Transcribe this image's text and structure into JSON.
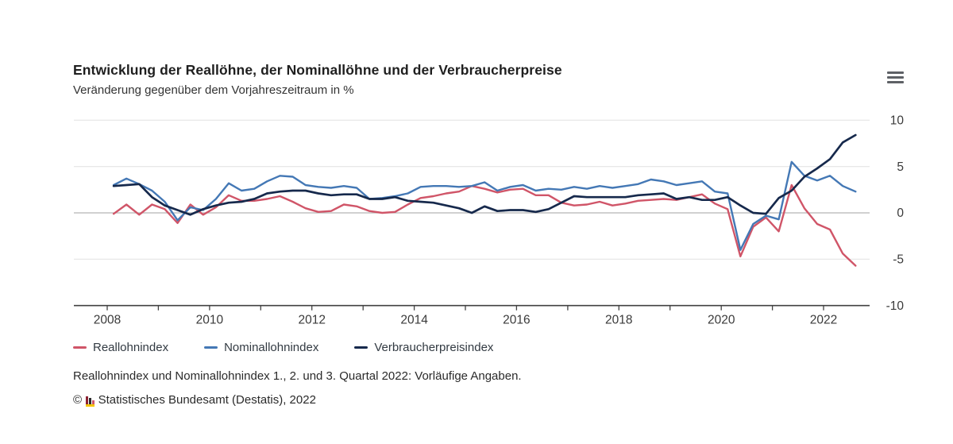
{
  "header": {
    "title": "Entwicklung der Reallöhne, der Nominallöhne und der Verbraucherpreise",
    "subtitle": "Veränderung gegenüber dem Vorjahreszeitraum in %"
  },
  "menu": {
    "icon": "hamburger-icon"
  },
  "chart_data": {
    "type": "line",
    "frequency": "quarterly",
    "x_start": "2008-Q1",
    "x_end": "2022-Q3",
    "x_ticks": [
      2008,
      2009,
      2010,
      2011,
      2012,
      2013,
      2014,
      2015,
      2016,
      2017,
      2018,
      2019,
      2020,
      2021,
      2022
    ],
    "x_tick_labels": [
      "2008",
      "2010",
      "2012",
      "2014",
      "2016",
      "2018",
      "2020",
      "2022"
    ],
    "y_ticks": [
      10,
      5,
      0,
      -5,
      -10
    ],
    "ylim": [
      -10,
      10
    ],
    "grid": "horizontal",
    "legend_position": "bottom",
    "colors": {
      "grid": "#e4e4e4",
      "zero_line": "#b5b5b5",
      "axis": "#424242",
      "tick_text": "#3a3a3a"
    },
    "series": [
      {
        "name": "Reallohnindex",
        "color": "#d05568",
        "values": [
          -0.1,
          0.9,
          -0.2,
          0.9,
          0.4,
          -1.1,
          0.9,
          -0.2,
          0.6,
          1.9,
          1.3,
          1.3,
          1.5,
          1.8,
          1.2,
          0.5,
          0.1,
          0.2,
          0.9,
          0.7,
          0.2,
          0.0,
          0.1,
          0.9,
          1.6,
          1.8,
          2.1,
          2.3,
          2.9,
          2.6,
          2.2,
          2.5,
          2.6,
          1.9,
          1.9,
          1.1,
          0.8,
          0.9,
          1.2,
          0.8,
          1.0,
          1.3,
          1.4,
          1.5,
          1.4,
          1.7,
          2.0,
          1.0,
          0.4,
          -4.7,
          -1.5,
          -0.5,
          -2.0,
          3.0,
          0.5,
          -1.2,
          -1.8,
          -4.4,
          -5.7
        ]
      },
      {
        "name": "Nominallohnindex",
        "color": "#4478b5",
        "values": [
          3.0,
          3.7,
          3.1,
          2.4,
          1.2,
          -0.8,
          0.6,
          0.3,
          1.5,
          3.2,
          2.4,
          2.6,
          3.4,
          4.0,
          3.9,
          3.0,
          2.8,
          2.7,
          2.9,
          2.7,
          1.5,
          1.6,
          1.8,
          2.1,
          2.8,
          2.9,
          2.9,
          2.8,
          2.9,
          3.3,
          2.4,
          2.8,
          3.0,
          2.4,
          2.6,
          2.5,
          2.8,
          2.6,
          2.9,
          2.7,
          2.9,
          3.1,
          3.6,
          3.4,
          3.0,
          3.2,
          3.4,
          2.3,
          2.1,
          -4.0,
          -1.2,
          -0.3,
          -0.7,
          5.5,
          4.0,
          3.5,
          4.0,
          2.9,
          2.3
        ]
      },
      {
        "name": "Verbraucherpreisindex",
        "color": "#16294c",
        "values": [
          2.9,
          3.0,
          3.1,
          1.7,
          0.8,
          0.3,
          -0.2,
          0.4,
          0.8,
          1.1,
          1.2,
          1.5,
          2.1,
          2.3,
          2.4,
          2.4,
          2.1,
          1.9,
          2.0,
          2.0,
          1.5,
          1.5,
          1.7,
          1.3,
          1.2,
          1.1,
          0.8,
          0.5,
          0.0,
          0.7,
          0.2,
          0.3,
          0.3,
          0.1,
          0.4,
          1.1,
          1.8,
          1.7,
          1.7,
          1.7,
          1.7,
          1.9,
          2.0,
          2.1,
          1.5,
          1.7,
          1.4,
          1.4,
          1.7,
          0.8,
          0.0,
          -0.1,
          1.6,
          2.4,
          3.9,
          4.8,
          5.8,
          7.6,
          8.4
        ]
      }
    ]
  },
  "footnote": "Reallohnindex und Nominallohnindex 1., 2. und 3. Quartal 2022: Vorläufige Angaben.",
  "source": {
    "symbol": "©",
    "label": "Statistisches Bundesamt (Destatis), 2022"
  }
}
